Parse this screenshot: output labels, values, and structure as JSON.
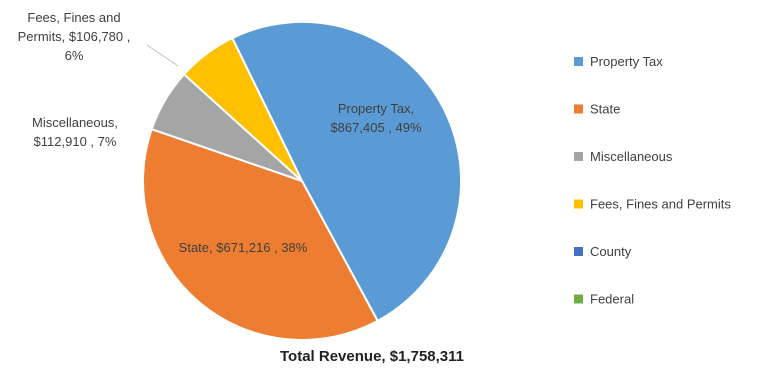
{
  "chart_data": {
    "type": "pie",
    "title": "Total Revenue, $1,758,311",
    "slices": [
      {
        "name": "Property Tax",
        "value": 867405,
        "value_label": "$867,405",
        "percent_label": "49%",
        "color": "#5B9BD5",
        "label_lines": [
          "Property Tax,",
          "$867,405 , 49%"
        ]
      },
      {
        "name": "State",
        "value": 671216,
        "value_label": "$671,216",
        "percent_label": "38%",
        "color": "#ED7D31",
        "label_lines": [
          "State, $671,216 , 38%"
        ]
      },
      {
        "name": "Miscellaneous",
        "value": 112910,
        "value_label": "$112,910",
        "percent_label": "7%",
        "color": "#A5A5A5",
        "label_lines": [
          "Miscellaneous,",
          "$112,910 , 7%"
        ]
      },
      {
        "name": "Fees, Fines and Permits",
        "value": 106780,
        "value_label": "$106,780",
        "percent_label": "6%",
        "color": "#FFC000",
        "label_lines": [
          "Fees, Fines and",
          "Permits, $106,780 ,",
          "6%"
        ]
      },
      {
        "name": "County",
        "value": 0,
        "color": "#4472C4"
      },
      {
        "name": "Federal",
        "value": 0,
        "color": "#70AD47"
      }
    ],
    "legend": {
      "position": "right",
      "entries": [
        "Property Tax",
        "State",
        "Miscellaneous",
        "Fees, Fines and Permits",
        "County",
        "Federal"
      ]
    }
  }
}
